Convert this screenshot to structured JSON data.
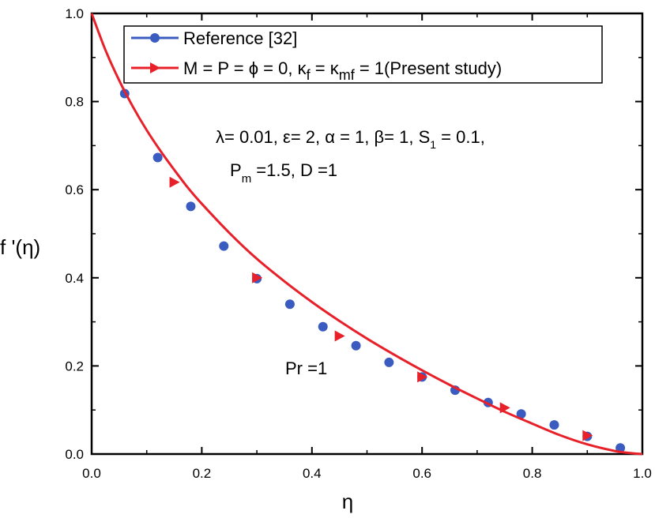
{
  "chart_data": {
    "type": "line",
    "xlabel": "η",
    "ylabel": "f '(η)",
    "xlim": [
      0.0,
      1.0
    ],
    "ylim": [
      0.0,
      1.0
    ],
    "xticks": [
      "0.0",
      "0.2",
      "0.4",
      "0.6",
      "0.8",
      "1.0"
    ],
    "yticks": [
      "0.0",
      "0.2",
      "0.4",
      "0.6",
      "0.8",
      "1.0"
    ],
    "grid": false,
    "legend_position": "top-right",
    "series": [
      {
        "name": "Reference [32]",
        "color": "#3a5bbf",
        "marker": "circle",
        "x": [
          0.06,
          0.12,
          0.18,
          0.24,
          0.3,
          0.36,
          0.42,
          0.48,
          0.54,
          0.6,
          0.66,
          0.72,
          0.78,
          0.84,
          0.9,
          0.96
        ],
        "y": [
          0.818,
          0.673,
          0.562,
          0.472,
          0.398,
          0.34,
          0.289,
          0.246,
          0.208,
          0.175,
          0.145,
          0.117,
          0.091,
          0.066,
          0.04,
          0.014
        ]
      },
      {
        "name_parts": {
          "prefix": "M = P = ϕ = 0, κ",
          "sub1": "f",
          "mid": " = κ",
          "sub2": "mf",
          "suffix": " = 1(Present study)"
        },
        "color": "#e8202a",
        "marker": "triangle-right",
        "curve_x": [
          0.0,
          0.025,
          0.05,
          0.075,
          0.1,
          0.125,
          0.15,
          0.175,
          0.2,
          0.25,
          0.3,
          0.35,
          0.4,
          0.45,
          0.5,
          0.55,
          0.6,
          0.65,
          0.7,
          0.75,
          0.8,
          0.85,
          0.9,
          0.95,
          0.98,
          1.0
        ],
        "curve_y": [
          1.0,
          0.917,
          0.848,
          0.788,
          0.735,
          0.688,
          0.645,
          0.604,
          0.568,
          0.502,
          0.443,
          0.392,
          0.345,
          0.302,
          0.262,
          0.225,
          0.19,
          0.157,
          0.126,
          0.096,
          0.069,
          0.043,
          0.022,
          0.007,
          0.002,
          0.0
        ],
        "marker_x": [
          0.15,
          0.3,
          0.45,
          0.6,
          0.75,
          0.9
        ],
        "marker_y": [
          0.617,
          0.4,
          0.268,
          0.175,
          0.105,
          0.042
        ]
      }
    ],
    "annotations": {
      "params_line1": {
        "lambda": "λ",
        "a": "= 0.01, ",
        "eps": "ε",
        "b": "= 2, ",
        "alpha": "α",
        "c": " = 1, ",
        "beta": "β",
        "d": "= 1, S",
        "s_sub": "1",
        "e": " = 0.1,"
      },
      "params_line2": {
        "a": "P",
        "p_sub": "m",
        "b": " =1.5, D =1"
      },
      "pr_label": "Pr =1"
    }
  }
}
